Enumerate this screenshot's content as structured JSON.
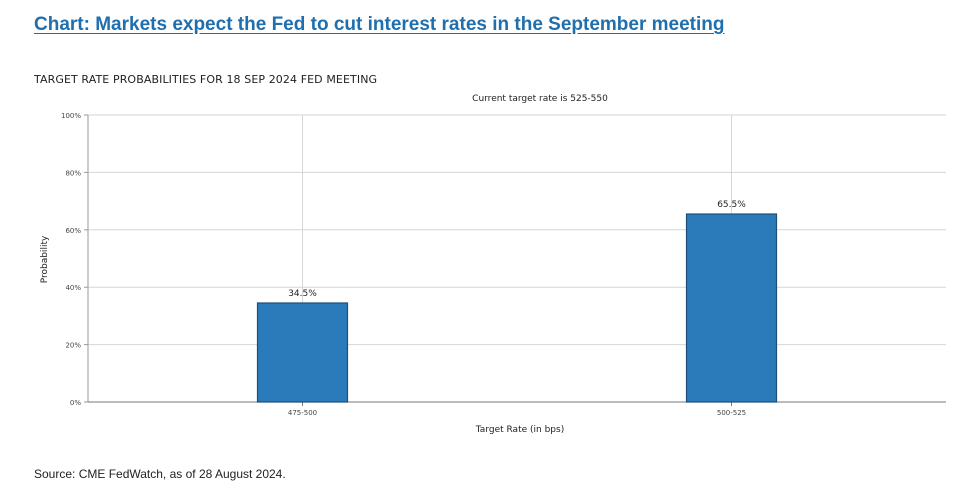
{
  "headline": "Chart: Markets expect the Fed to cut interest rates in the September meeting",
  "source": "Source: CME FedWatch, as of 28 August 2024.",
  "chart_data": {
    "type": "bar",
    "title": "TARGET RATE PROBABILITIES FOR 18 SEP 2024 FED MEETING",
    "subtitle": "Current target rate is 525-550",
    "categories": [
      "475-500",
      "500-525"
    ],
    "values": [
      34.5,
      65.5
    ],
    "data_labels": [
      "34.5%",
      "65.5%"
    ],
    "xlabel": "Target Rate (in bps)",
    "ylabel": "Probability",
    "ylim": [
      0,
      100
    ],
    "yticks": [
      0,
      20,
      40,
      60,
      80,
      100
    ],
    "ytick_labels": [
      "0%",
      "20%",
      "40%",
      "60%",
      "80%",
      "100%"
    ],
    "grid": true,
    "bar_color": "#2b7bba",
    "bar_edge_color": "#1b4f7a"
  }
}
